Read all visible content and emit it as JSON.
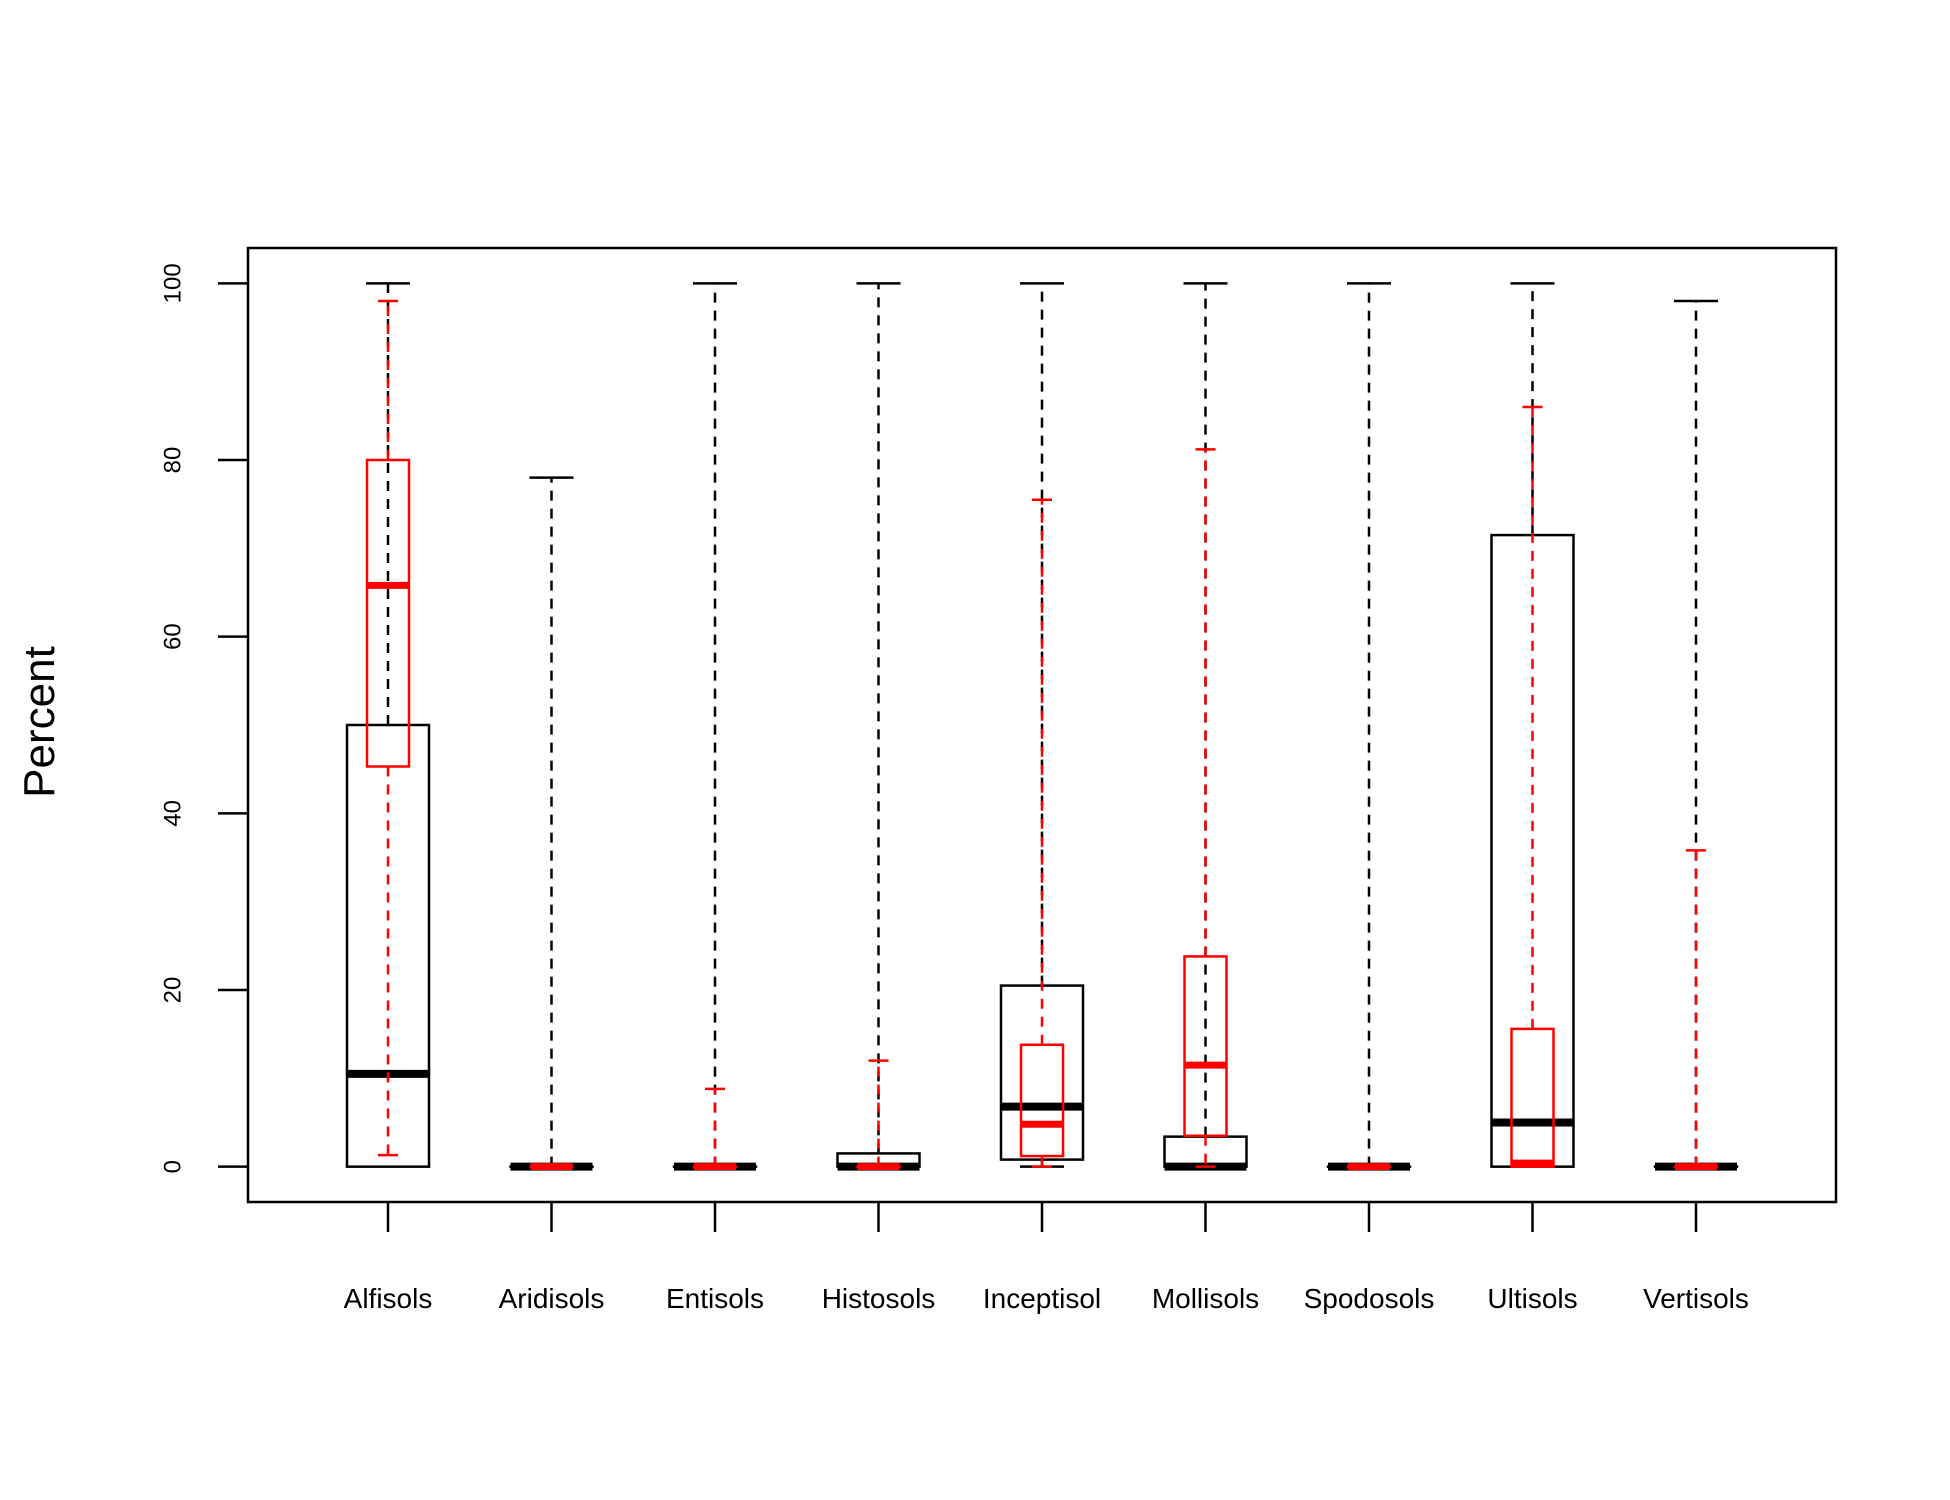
{
  "chart_data": {
    "type": "boxplot",
    "title": "",
    "xlabel": "",
    "ylabel": "Percent",
    "ylim": [
      -4,
      104
    ],
    "yticks": [
      0,
      20,
      40,
      60,
      80,
      100
    ],
    "ytick_labels": [
      "0",
      "20",
      "40",
      "60",
      "80",
      "100"
    ],
    "categories": [
      "Alfisols",
      "Aridisols",
      "Entisols",
      "Histosols",
      "Inceptisol",
      "Mollisols",
      "Spodosols",
      "Ultisols",
      "Vertisols"
    ],
    "grid": false,
    "series": [
      {
        "name": "black",
        "color": "#000000",
        "boxes": [
          {
            "min": 0,
            "q1": 0,
            "median": 10.5,
            "q3": 50,
            "max": 100
          },
          {
            "min": 0,
            "q1": 0,
            "median": 0,
            "q3": 0,
            "max": 78
          },
          {
            "min": 0,
            "q1": 0,
            "median": 0,
            "q3": 0,
            "max": 100
          },
          {
            "min": 0,
            "q1": 0,
            "median": 0,
            "q3": 1.5,
            "max": 100
          },
          {
            "min": 0,
            "q1": 0.8,
            "median": 6.8,
            "q3": 20.5,
            "max": 100
          },
          {
            "min": 0,
            "q1": 0,
            "median": 0,
            "q3": 3.4,
            "max": 100
          },
          {
            "min": 0,
            "q1": 0,
            "median": 0,
            "q3": 0,
            "max": 100
          },
          {
            "min": 0,
            "q1": 0,
            "median": 5,
            "q3": 71.5,
            "max": 100
          },
          {
            "min": 0,
            "q1": 0,
            "median": 0,
            "q3": 0,
            "max": 98
          }
        ]
      },
      {
        "name": "red",
        "color": "#ff0000",
        "boxes": [
          {
            "min": 1.3,
            "q1": 45.3,
            "median": 65.8,
            "q3": 80,
            "max": 98
          },
          {
            "min": 0,
            "q1": 0,
            "median": 0,
            "q3": 0,
            "max": 0
          },
          {
            "min": 0,
            "q1": 0,
            "median": 0,
            "q3": 0,
            "max": 8.8
          },
          {
            "min": 0,
            "q1": 0,
            "median": 0,
            "q3": 0,
            "max": 12
          },
          {
            "min": 0,
            "q1": 1.2,
            "median": 4.8,
            "q3": 13.8,
            "max": 75.5
          },
          {
            "min": 0,
            "q1": 3.5,
            "median": 11.5,
            "q3": 23.8,
            "max": 81.2
          },
          {
            "min": 0,
            "q1": 0,
            "median": 0,
            "q3": 0,
            "max": 0
          },
          {
            "min": 0,
            "q1": 0,
            "median": 0.4,
            "q3": 15.6,
            "max": 86
          },
          {
            "min": 0,
            "q1": 0,
            "median": 0,
            "q3": 0,
            "max": 35.8
          }
        ]
      }
    ]
  }
}
